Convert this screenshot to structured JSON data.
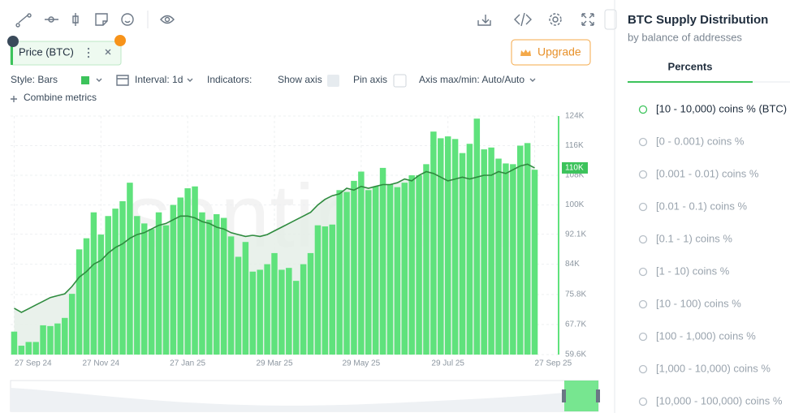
{
  "toolbar": {
    "metric_chip": "Price (BTC)",
    "upgrade": "Upgrade"
  },
  "controls": {
    "style": "Style: Bars",
    "interval": "Interval: 1d",
    "indicators": "Indicators:",
    "show_axis": "Show axis",
    "pin_axis": "Pin axis",
    "axis_minmax": "Axis max/min: Auto/Auto",
    "combine": "Combine metrics"
  },
  "watermark": "santiment",
  "chart_data": {
    "type": "bar",
    "categories": [
      "27 Sep 24",
      null,
      null,
      null,
      null,
      null,
      null,
      null,
      null,
      null,
      null,
      null,
      "27 Nov 24",
      null,
      null,
      null,
      null,
      null,
      null,
      null,
      null,
      null,
      null,
      null,
      "27 Jan 25",
      null,
      null,
      null,
      null,
      null,
      null,
      null,
      null,
      null,
      null,
      null,
      "29 Mar 25",
      null,
      null,
      null,
      null,
      null,
      null,
      null,
      null,
      null,
      null,
      null,
      "29 May 25",
      null,
      null,
      null,
      null,
      null,
      null,
      null,
      null,
      null,
      null,
      null,
      "29 Jul 25",
      null,
      null,
      null,
      null,
      null,
      null,
      null,
      null,
      null,
      null,
      null,
      "27 Sep 25"
    ],
    "series": [
      {
        "type": "bar",
        "color": "#5fe27c",
        "values": [
          65800,
          62000,
          63000,
          63000,
          67500,
          67300,
          68000,
          69500,
          76000,
          88000,
          91000,
          98000,
          92000,
          97000,
          99000,
          101000,
          106000,
          97000,
          95000,
          93500,
          98000,
          94500,
          100000,
          102000,
          104500,
          105000,
          98000,
          96000,
          97500,
          96500,
          91500,
          86000,
          90000,
          82000,
          82500,
          84000,
          87000,
          82500,
          83000,
          79500,
          84000,
          87000,
          94500,
          94200,
          94700,
          104000,
          103500,
          106500,
          109000,
          104000,
          105000,
          110000,
          105500,
          104800,
          106000,
          108000,
          108000,
          111000,
          119800,
          118000,
          118500,
          117800,
          114000,
          116500,
          123300,
          115000,
          115500,
          112500,
          111200,
          111000,
          116000,
          116700,
          109500
        ]
      },
      {
        "type": "line",
        "color": "#2e8b3e",
        "values": [
          72100,
          71000,
          72000,
          73000,
          74000,
          75000,
          75500,
          76000,
          78000,
          80500,
          82000,
          84000,
          85000,
          87000,
          88500,
          89500,
          91000,
          92000,
          92500,
          93500,
          94500,
          95000,
          96000,
          97000,
          97000,
          96500,
          95500,
          95000,
          94000,
          93500,
          92500,
          92000,
          91500,
          91800,
          91500,
          92000,
          93000,
          94000,
          95000,
          96000,
          97000,
          98000,
          100000,
          101500,
          102500,
          103000,
          104500,
          104000,
          105000,
          104500,
          105000,
          105500,
          105500,
          106000,
          107000,
          106500,
          108000,
          109000,
          108500,
          107500,
          106500,
          107000,
          107500,
          107000,
          107500,
          108000,
          108000,
          109000,
          108500,
          109500,
          110500,
          111000,
          110000
        ]
      }
    ],
    "ylim": [
      59600,
      124000
    ],
    "yticks": [
      {
        "value": 124000,
        "label": "124K"
      },
      {
        "value": 116000,
        "label": "116K"
      },
      {
        "value": 108000,
        "label": "108K"
      },
      {
        "value": 100000,
        "label": "100K"
      },
      {
        "value": 92100,
        "label": "92.1K"
      },
      {
        "value": 84000,
        "label": "84K"
      },
      {
        "value": 75800,
        "label": "75.8K"
      },
      {
        "value": 67700,
        "label": "67.7K"
      },
      {
        "value": 59600,
        "label": "59.6K"
      }
    ],
    "price_tag": {
      "value": 110000,
      "label": "110K"
    },
    "grid": true
  },
  "sidebar": {
    "title": "BTC Supply Distribution",
    "subtitle": "by balance of addresses",
    "tab": "Percents",
    "items": [
      "[10 - 10,000) coins % (BTC)",
      "[0 - 0.001) coins %",
      "[0.001 - 0.01) coins %",
      "[0.01 - 0.1) coins %",
      "[0.1 - 1) coins %",
      "[1 - 10) coins %",
      "[10 - 100) coins %",
      "[100 - 1,000) coins %",
      "[1,000 - 10,000) coins %",
      "[10,000 - 100,000) coins %"
    ]
  }
}
